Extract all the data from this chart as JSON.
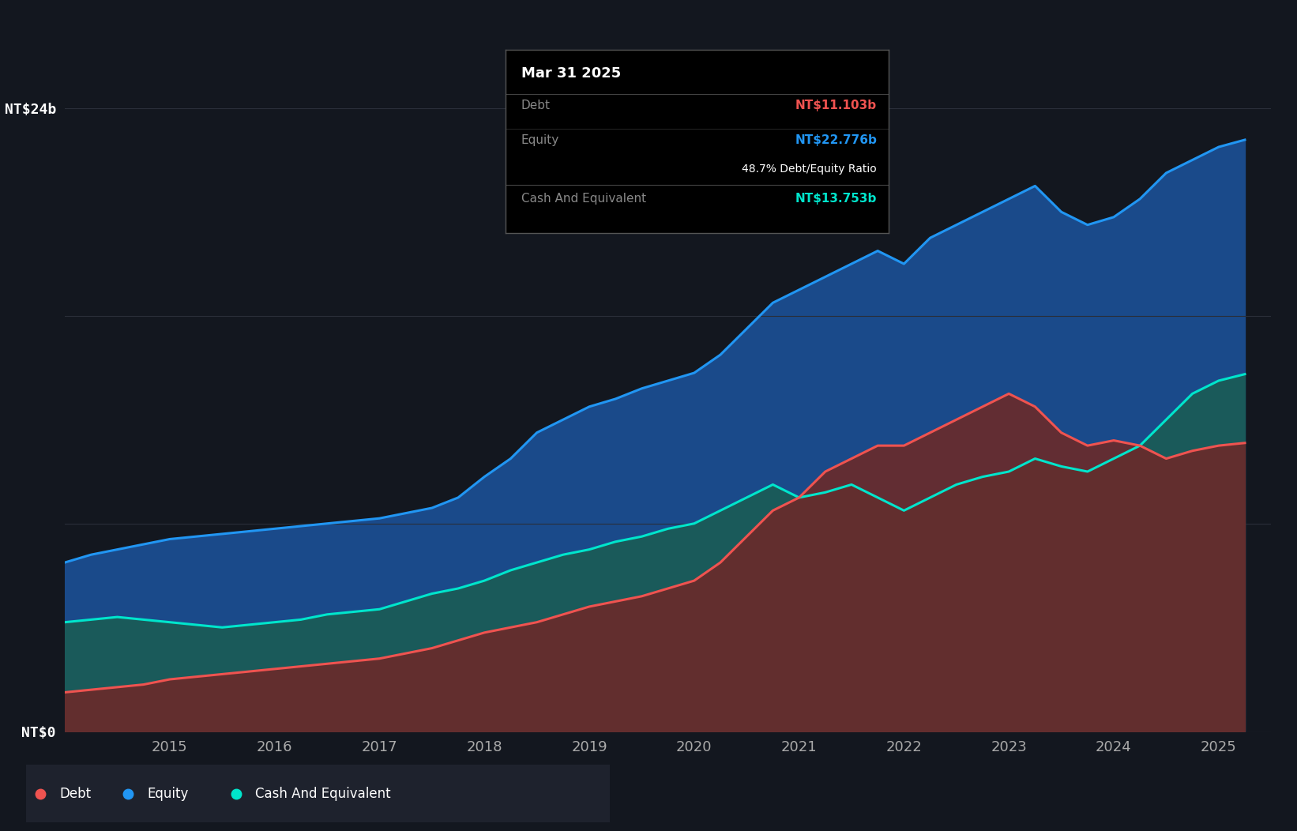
{
  "bg_color": "#13171f",
  "plot_bg_color": "#13171f",
  "grid_color": "#2a2e39",
  "years": [
    2014.0,
    2014.25,
    2014.5,
    2014.75,
    2015.0,
    2015.25,
    2015.5,
    2015.75,
    2016.0,
    2016.25,
    2016.5,
    2016.75,
    2017.0,
    2017.25,
    2017.5,
    2017.75,
    2018.0,
    2018.25,
    2018.5,
    2018.75,
    2019.0,
    2019.25,
    2019.5,
    2019.75,
    2020.0,
    2020.25,
    2020.5,
    2020.75,
    2021.0,
    2021.25,
    2021.5,
    2021.75,
    2022.0,
    2022.25,
    2022.5,
    2022.75,
    2023.0,
    2023.25,
    2023.5,
    2023.75,
    2024.0,
    2024.25,
    2024.5,
    2024.75,
    2025.0,
    2025.25
  ],
  "equity": [
    6.5,
    6.8,
    7.0,
    7.2,
    7.4,
    7.5,
    7.6,
    7.7,
    7.8,
    7.9,
    8.0,
    8.1,
    8.2,
    8.4,
    8.6,
    9.0,
    9.8,
    10.5,
    11.5,
    12.0,
    12.5,
    12.8,
    13.2,
    13.5,
    13.8,
    14.5,
    15.5,
    16.5,
    17.0,
    17.5,
    18.0,
    18.5,
    18.0,
    19.0,
    19.5,
    20.0,
    20.5,
    21.0,
    20.0,
    19.5,
    19.8,
    20.5,
    21.5,
    22.0,
    22.5,
    22.776
  ],
  "cash": [
    4.2,
    4.3,
    4.4,
    4.3,
    4.2,
    4.1,
    4.0,
    4.1,
    4.2,
    4.3,
    4.5,
    4.6,
    4.7,
    5.0,
    5.3,
    5.5,
    5.8,
    6.2,
    6.5,
    6.8,
    7.0,
    7.3,
    7.5,
    7.8,
    8.0,
    8.5,
    9.0,
    9.5,
    9.0,
    9.2,
    9.5,
    9.0,
    8.5,
    9.0,
    9.5,
    9.8,
    10.0,
    10.5,
    10.2,
    10.0,
    10.5,
    11.0,
    12.0,
    13.0,
    13.5,
    13.753
  ],
  "debt": [
    1.5,
    1.6,
    1.7,
    1.8,
    2.0,
    2.1,
    2.2,
    2.3,
    2.4,
    2.5,
    2.6,
    2.7,
    2.8,
    3.0,
    3.2,
    3.5,
    3.8,
    4.0,
    4.2,
    4.5,
    4.8,
    5.0,
    5.2,
    5.5,
    5.8,
    6.5,
    7.5,
    8.5,
    9.0,
    10.0,
    10.5,
    11.0,
    11.0,
    11.5,
    12.0,
    12.5,
    13.0,
    12.5,
    11.5,
    11.0,
    11.2,
    11.0,
    10.5,
    10.8,
    11.0,
    11.103
  ],
  "equity_color": "#2196f3",
  "equity_fill": "#1a4a8a",
  "cash_color": "#00e5cc",
  "cash_fill": "#1a5a5a",
  "debt_color": "#ef5350",
  "debt_fill": "#6b2a2a",
  "ylim": [
    0,
    24
  ],
  "xlim": [
    2014.0,
    2025.5
  ],
  "xticks": [
    2015,
    2016,
    2017,
    2018,
    2019,
    2020,
    2021,
    2022,
    2023,
    2024,
    2025
  ],
  "tooltip_title": "Mar 31 2025",
  "tooltip_debt_label": "Debt",
  "tooltip_debt_value": "NT$11.103b",
  "tooltip_equity_label": "Equity",
  "tooltip_equity_value": "NT$22.776b",
  "tooltip_ratio": "48.7% Debt/Equity Ratio",
  "tooltip_cash_label": "Cash And Equivalent",
  "tooltip_cash_value": "NT$13.753b",
  "legend_debt_label": "Debt",
  "legend_equity_label": "Equity",
  "legend_cash_label": "Cash And Equivalent"
}
